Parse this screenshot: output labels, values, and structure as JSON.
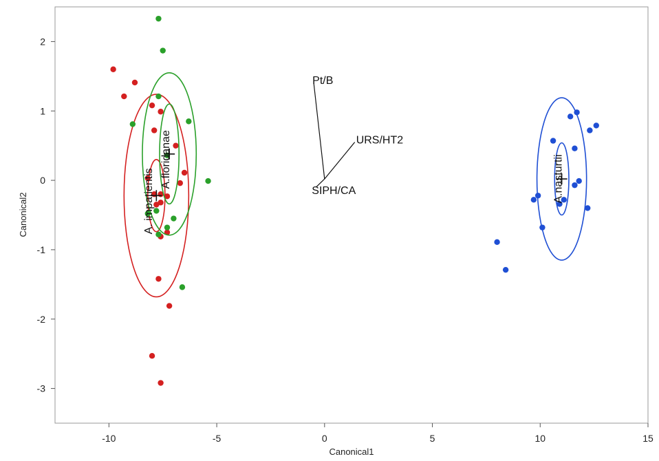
{
  "chart_data": {
    "type": "scatter",
    "xlabel": "Canonical1",
    "ylabel": "Canonical2",
    "xlim": [
      -12.5,
      15
    ],
    "ylim": [
      -3.5,
      2.5
    ],
    "xticks": [
      -10,
      -5,
      0,
      5,
      10,
      15
    ],
    "yticks": [
      -3,
      -2,
      -1,
      0,
      1,
      2
    ],
    "grid": false,
    "series": [
      {
        "name": "A. impatientis",
        "color": "#d42020",
        "points": [
          [
            -9.8,
            1.6
          ],
          [
            -9.3,
            1.21
          ],
          [
            -8.8,
            1.41
          ],
          [
            -8.0,
            1.08
          ],
          [
            -7.6,
            0.99
          ],
          [
            -7.9,
            0.72
          ],
          [
            -6.9,
            0.5
          ],
          [
            -6.5,
            0.11
          ],
          [
            -6.7,
            -0.04
          ],
          [
            -8.2,
            0.03
          ],
          [
            -7.9,
            -0.2
          ],
          [
            -7.6,
            -0.2
          ],
          [
            -7.3,
            -0.23
          ],
          [
            -7.8,
            -0.35
          ],
          [
            -7.6,
            -0.32
          ],
          [
            -7.6,
            -0.81
          ],
          [
            -7.3,
            -0.75
          ],
          [
            -7.7,
            -1.42
          ],
          [
            -7.2,
            -1.81
          ],
          [
            -8.0,
            -2.53
          ],
          [
            -7.6,
            -2.92
          ]
        ],
        "centroid": [
          -7.8,
          -0.22
        ],
        "ellipse_inner": {
          "center": [
            -7.8,
            -0.22
          ],
          "rx": 0.4,
          "ry": 0.52
        },
        "ellipse_outer": {
          "center": [
            -7.8,
            -0.22
          ],
          "rx": 1.5,
          "ry": 1.46
        }
      },
      {
        "name": "A. floridanae",
        "color": "#2aa02a",
        "points": [
          [
            -7.7,
            2.33
          ],
          [
            -7.5,
            1.87
          ],
          [
            -7.7,
            1.21
          ],
          [
            -8.9,
            0.81
          ],
          [
            -6.3,
            0.85
          ],
          [
            -7.3,
            0.36
          ],
          [
            -5.4,
            -0.01
          ],
          [
            -8.2,
            -0.48
          ],
          [
            -7.8,
            -0.44
          ],
          [
            -7.0,
            -0.55
          ],
          [
            -7.3,
            -0.68
          ],
          [
            -7.7,
            -0.78
          ],
          [
            -6.6,
            -1.54
          ]
        ],
        "centroid": [
          -7.2,
          0.38
        ],
        "ellipse_inner": {
          "center": [
            -7.2,
            0.38
          ],
          "rx": 0.45,
          "ry": 0.72
        },
        "ellipse_outer": {
          "center": [
            -7.2,
            0.38
          ],
          "rx": 1.25,
          "ry": 1.17
        }
      },
      {
        "name": "A.nasturtii",
        "color": "#1f4fd4",
        "points": [
          [
            11.7,
            0.98
          ],
          [
            11.4,
            0.92
          ],
          [
            12.6,
            0.79
          ],
          [
            12.3,
            0.72
          ],
          [
            10.6,
            0.57
          ],
          [
            11.6,
            0.46
          ],
          [
            11.8,
            -0.01
          ],
          [
            11.6,
            -0.07
          ],
          [
            9.7,
            -0.28
          ],
          [
            9.9,
            -0.22
          ],
          [
            11.1,
            -0.28
          ],
          [
            10.9,
            -0.34
          ],
          [
            12.2,
            -0.4
          ],
          [
            10.1,
            -0.68
          ],
          [
            8.0,
            -0.89
          ],
          [
            8.4,
            -1.29
          ]
        ],
        "centroid": [
          11.0,
          0.02
        ],
        "ellipse_inner": {
          "center": [
            11.0,
            0.02
          ],
          "rx": 0.33,
          "ry": 0.52
        },
        "ellipse_outer": {
          "center": [
            11.0,
            0.02
          ],
          "rx": 1.15,
          "ry": 1.17
        }
      }
    ],
    "biplot_rays": [
      {
        "label": "Pt/B",
        "end": [
          -0.5,
          1.4
        ]
      },
      {
        "label": "URS/HT2",
        "end": [
          1.4,
          0.55
        ]
      },
      {
        "label": "SIPH/CA",
        "end": [
          -0.4,
          -0.1
        ]
      }
    ],
    "biplot_origin": [
      0.0,
      0.02
    ],
    "group_labels": [
      {
        "text": "A. impatientis",
        "at": [
          -8.0,
          -0.3
        ],
        "rotate": -90
      },
      {
        "text": "A.floridanae",
        "at": [
          -7.2,
          0.3
        ],
        "rotate": -90
      },
      {
        "text": "A.nasturtii",
        "at": [
          11.0,
          0.02
        ],
        "rotate": -90
      }
    ]
  }
}
